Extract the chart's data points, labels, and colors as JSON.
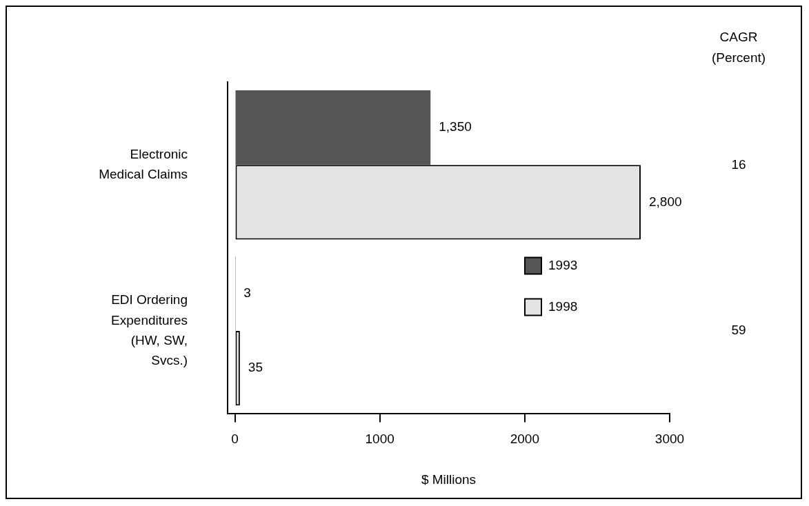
{
  "chart_data": {
    "type": "bar",
    "orientation": "horizontal",
    "categories": [
      "Electronic Medical Claims",
      "EDI Ordering Expenditures (HW, SW, Svcs.)"
    ],
    "series": [
      {
        "name": "1993",
        "color": "#555555",
        "values": [
          1350,
          3
        ],
        "value_labels": [
          "1,350",
          "3"
        ]
      },
      {
        "name": "1998",
        "color": "#e4e4e4",
        "values": [
          2800,
          35
        ],
        "value_labels": [
          "2,800",
          "35"
        ]
      }
    ],
    "xlim": [
      -50,
      3000
    ],
    "xticks": [
      0,
      1000,
      2000,
      3000
    ],
    "xlabel": "$ Millions",
    "legend": "bottom right",
    "grid": false,
    "annotations": [
      "CAGR (Percent)",
      "16",
      "59"
    ]
  }
}
